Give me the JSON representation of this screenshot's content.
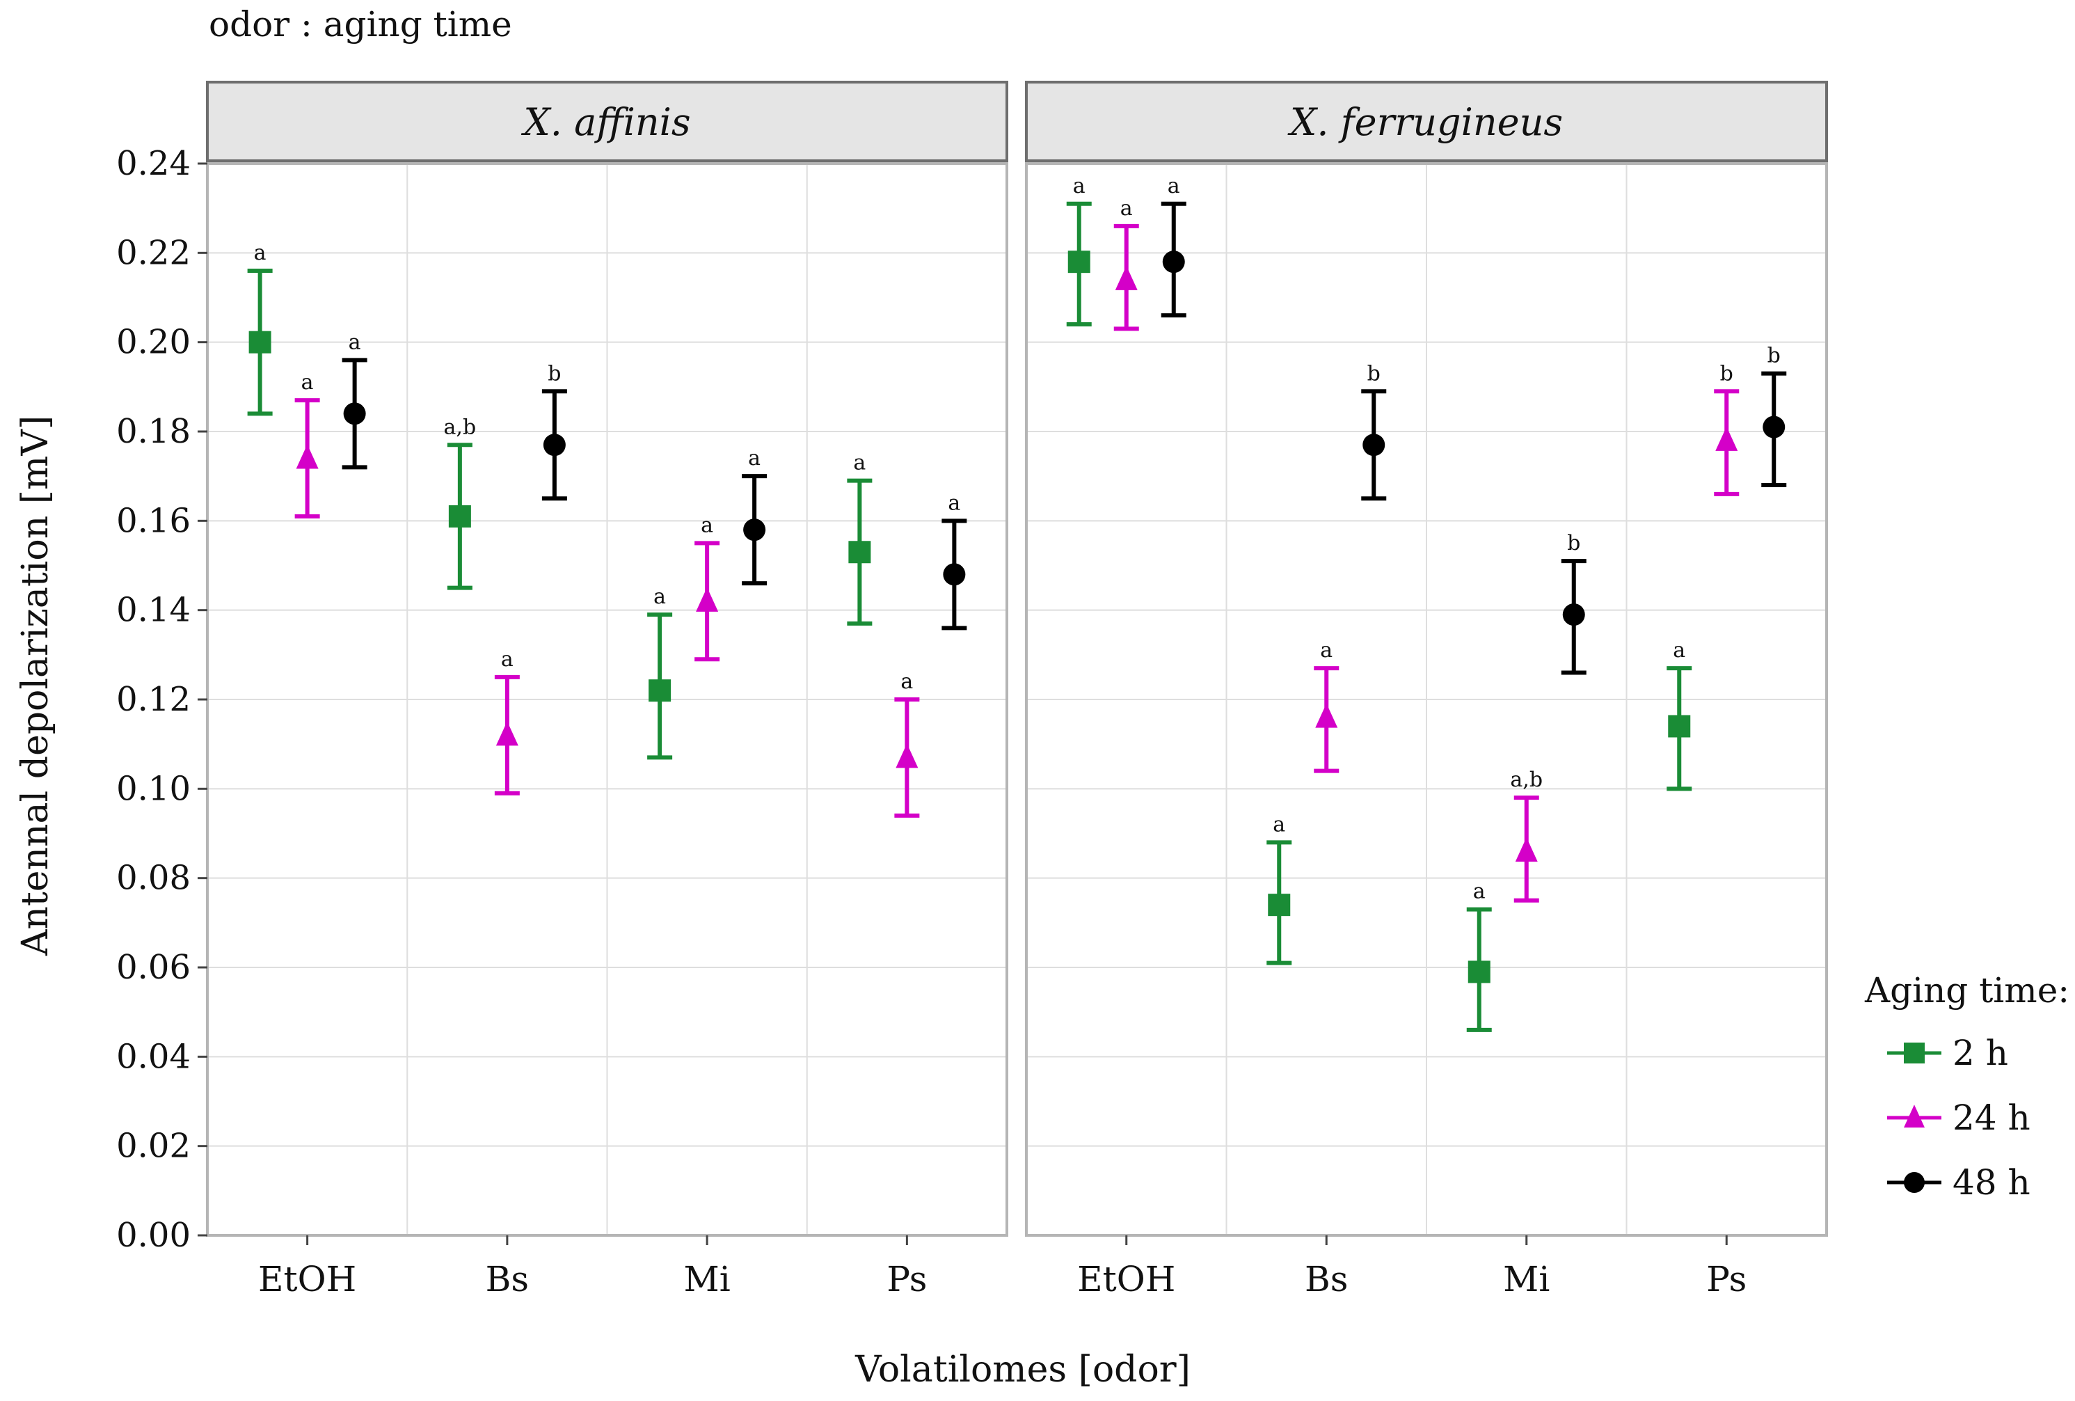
{
  "chart_data": {
    "type": "scatter",
    "subtitle": "odor : aging time",
    "xlabel": "Volatilomes [odor]",
    "ylabel": "Antennal depolarization [mV]",
    "ylim": [
      0,
      0.24
    ],
    "y_ticks": [
      "0.00",
      "0.02",
      "0.04",
      "0.06",
      "0.08",
      "0.10",
      "0.12",
      "0.14",
      "0.16",
      "0.18",
      "0.20",
      "0.22",
      "0.24"
    ],
    "categories": [
      "EtOH",
      "Bs",
      "Mi",
      "Ps"
    ],
    "grid": true,
    "legend": {
      "title": "Aging time:",
      "position": "right",
      "entries": [
        "2 h",
        "24 h",
        "48 h"
      ]
    },
    "series_style": [
      {
        "name": "2 h",
        "color": "#1a8c36",
        "marker": "square"
      },
      {
        "name": "24 h",
        "color": "#d400c8",
        "marker": "triangle-up"
      },
      {
        "name": "48 h",
        "color": "#000000",
        "marker": "circle"
      }
    ],
    "panels": [
      {
        "title": "X. affinis",
        "series": [
          {
            "name": "2 h",
            "mean": [
              0.2,
              0.161,
              0.122,
              0.153
            ],
            "lower": [
              0.184,
              0.145,
              0.107,
              0.137
            ],
            "upper": [
              0.216,
              0.177,
              0.139,
              0.169
            ],
            "labels": [
              "a",
              "a,b",
              "a",
              "a"
            ]
          },
          {
            "name": "24 h",
            "mean": [
              0.174,
              0.112,
              0.142,
              0.107
            ],
            "lower": [
              0.161,
              0.099,
              0.129,
              0.094
            ],
            "upper": [
              0.187,
              0.125,
              0.155,
              0.12
            ],
            "labels": [
              "a",
              "a",
              "a",
              "a"
            ]
          },
          {
            "name": "48 h",
            "mean": [
              0.184,
              0.177,
              0.158,
              0.148
            ],
            "lower": [
              0.172,
              0.165,
              0.146,
              0.136
            ],
            "upper": [
              0.196,
              0.189,
              0.17,
              0.16
            ],
            "labels": [
              "a",
              "b",
              "a",
              "a"
            ]
          }
        ]
      },
      {
        "title": "X. ferrugineus",
        "series": [
          {
            "name": "2 h",
            "mean": [
              0.218,
              0.074,
              0.059,
              0.114
            ],
            "lower": [
              0.204,
              0.061,
              0.046,
              0.1
            ],
            "upper": [
              0.231,
              0.088,
              0.073,
              0.127
            ],
            "labels": [
              "a",
              "a",
              "a",
              "a"
            ]
          },
          {
            "name": "24 h",
            "mean": [
              0.214,
              0.116,
              0.086,
              0.178
            ],
            "lower": [
              0.203,
              0.104,
              0.075,
              0.166
            ],
            "upper": [
              0.226,
              0.127,
              0.098,
              0.189
            ],
            "labels": [
              "a",
              "a",
              "a,b",
              "b"
            ]
          },
          {
            "name": "48 h",
            "mean": [
              0.218,
              0.177,
              0.139,
              0.181
            ],
            "lower": [
              0.206,
              0.165,
              0.126,
              0.168
            ],
            "upper": [
              0.231,
              0.189,
              0.151,
              0.193
            ],
            "labels": [
              "a",
              "b",
              "b",
              "b"
            ]
          }
        ]
      }
    ]
  }
}
